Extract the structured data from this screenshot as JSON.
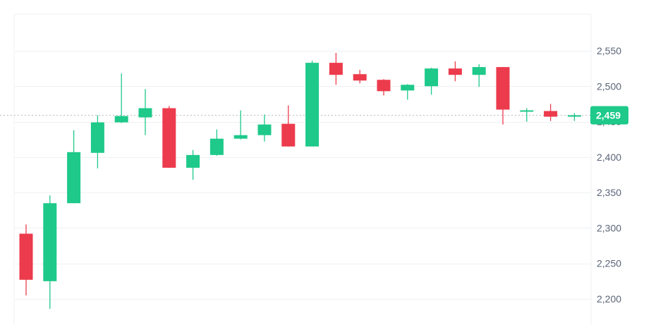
{
  "chart_data": {
    "type": "candlestick",
    "y_ticks": [
      2200,
      2250,
      2300,
      2350,
      2400,
      2450,
      2500,
      2550
    ],
    "y_tick_labels": [
      "2,200",
      "2,250",
      "2,300",
      "2,350",
      "2,400",
      "2,450",
      "2,500",
      "2,550"
    ],
    "ylim": [
      2175,
      2600
    ],
    "grid": true,
    "current_price": 2459,
    "current_price_label": "2,459",
    "candles": [
      {
        "open": 2292,
        "high": 2305,
        "low": 2205,
        "close": 2227
      },
      {
        "open": 2225,
        "high": 2346,
        "low": 2186,
        "close": 2335
      },
      {
        "open": 2335,
        "high": 2438,
        "low": 2335,
        "close": 2407
      },
      {
        "open": 2406,
        "high": 2459,
        "low": 2384,
        "close": 2449
      },
      {
        "open": 2449,
        "high": 2518,
        "low": 2448,
        "close": 2458
      },
      {
        "open": 2456,
        "high": 2496,
        "low": 2431,
        "close": 2469
      },
      {
        "open": 2469,
        "high": 2472,
        "low": 2385,
        "close": 2385
      },
      {
        "open": 2385,
        "high": 2410,
        "low": 2368,
        "close": 2403
      },
      {
        "open": 2403,
        "high": 2439,
        "low": 2402,
        "close": 2426
      },
      {
        "open": 2426,
        "high": 2466,
        "low": 2425,
        "close": 2431
      },
      {
        "open": 2431,
        "high": 2460,
        "low": 2422,
        "close": 2446
      },
      {
        "open": 2447,
        "high": 2473,
        "low": 2415,
        "close": 2415
      },
      {
        "open": 2415,
        "high": 2536,
        "low": 2415,
        "close": 2533
      },
      {
        "open": 2533,
        "high": 2547,
        "low": 2502,
        "close": 2516
      },
      {
        "open": 2517,
        "high": 2523,
        "low": 2504,
        "close": 2508
      },
      {
        "open": 2509,
        "high": 2510,
        "low": 2487,
        "close": 2493
      },
      {
        "open": 2494,
        "high": 2503,
        "low": 2481,
        "close": 2502
      },
      {
        "open": 2500,
        "high": 2526,
        "low": 2488,
        "close": 2525
      },
      {
        "open": 2525,
        "high": 2535,
        "low": 2507,
        "close": 2516
      },
      {
        "open": 2516,
        "high": 2531,
        "low": 2499,
        "close": 2527
      },
      {
        "open": 2527,
        "high": 2527,
        "low": 2446,
        "close": 2467
      },
      {
        "open": 2465,
        "high": 2469,
        "low": 2450,
        "close": 2466
      },
      {
        "open": 2465,
        "high": 2475,
        "low": 2451,
        "close": 2457
      },
      {
        "open": 2458,
        "high": 2462,
        "low": 2451,
        "close": 2459
      }
    ]
  },
  "colors": {
    "up": "#1ec98a",
    "down": "#ec3b4c",
    "grid": "#eef0f3",
    "axis_text": "#5b6478",
    "price_line": "#b8bcc4",
    "badge": "#1ec98a"
  }
}
